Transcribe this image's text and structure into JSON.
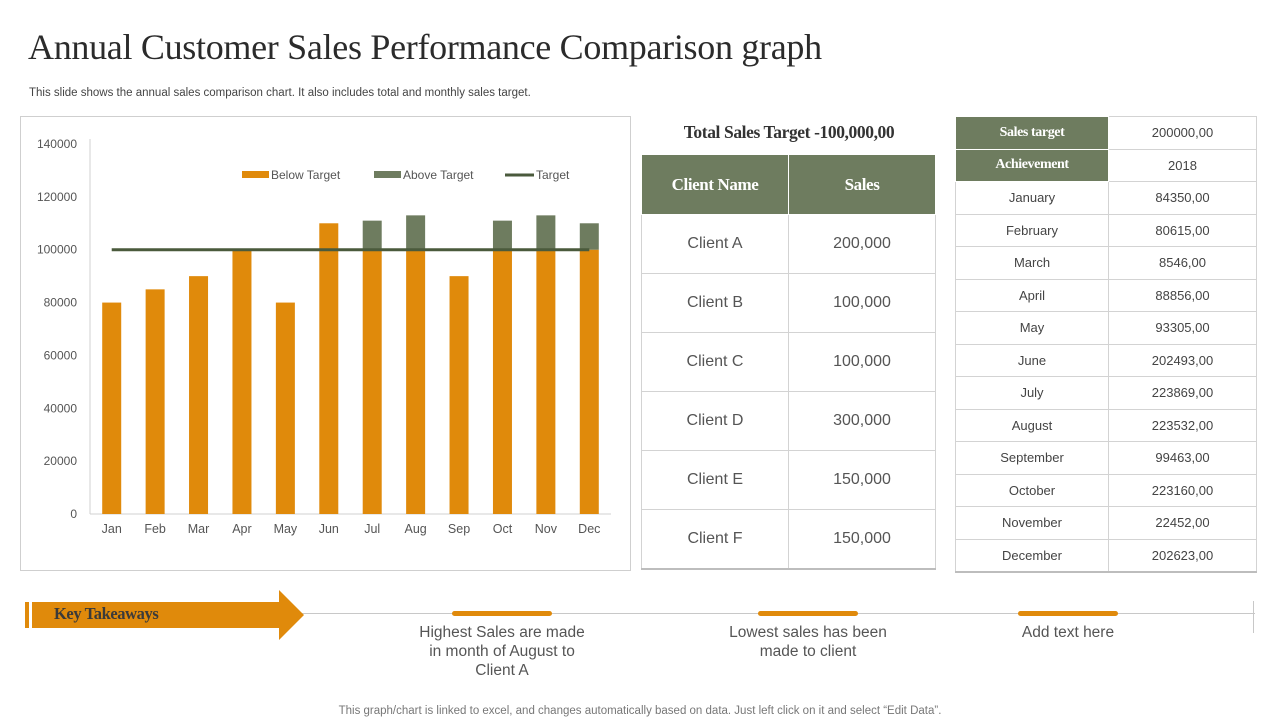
{
  "title": "Annual Customer Sales Performance Comparison graph",
  "subtitle": "This slide shows the annual sales comparison chart. It also includes total and monthly sales target.",
  "colors": {
    "below": "#e08a0b",
    "above": "#6e7c5f",
    "target": "#4a5a3c",
    "header": "#6e7c5f"
  },
  "chart_data": {
    "type": "bar",
    "stacked": true,
    "categories": [
      "Jan",
      "Feb",
      "Mar",
      "Apr",
      "May",
      "Jun",
      "Jul",
      "Aug",
      "Sep",
      "Oct",
      "Nov",
      "Dec"
    ],
    "series": [
      {
        "name": "Below Target",
        "values": [
          80000,
          85000,
          90000,
          100000,
          80000,
          110000,
          100000,
          100000,
          90000,
          100000,
          100000,
          100000
        ]
      },
      {
        "name": "Above Target",
        "values": [
          0,
          0,
          0,
          0,
          0,
          0,
          11000,
          13000,
          0,
          11000,
          13000,
          10000
        ]
      },
      {
        "name": "Target",
        "type": "line",
        "values": [
          100000,
          100000,
          100000,
          100000,
          100000,
          100000,
          100000,
          100000,
          100000,
          100000,
          100000,
          100000
        ]
      }
    ],
    "ylim": [
      0,
      140000
    ],
    "yticks": [
      0,
      20000,
      40000,
      60000,
      80000,
      100000,
      120000,
      140000
    ],
    "legend": [
      "Below Target",
      "Above Target",
      "Target"
    ],
    "legend_position": "top-right",
    "grid": false,
    "xlabel": "",
    "ylabel": ""
  },
  "clients": {
    "heading": "Total Sales Target -100,000,00",
    "columns": [
      "Client Name",
      "Sales"
    ],
    "rows": [
      [
        "Client A",
        "200,000"
      ],
      [
        "Client B",
        "100,000"
      ],
      [
        "Client C",
        "100,000"
      ],
      [
        "Client D",
        "300,000"
      ],
      [
        "Client E",
        "150,000"
      ],
      [
        "Client F",
        "150,000"
      ]
    ]
  },
  "monthly": {
    "target_label": "Sales target",
    "target_value": "200000,00",
    "achievement_label": "Achievement",
    "achievement_value": "2018",
    "rows": [
      [
        "January",
        "84350,00"
      ],
      [
        "February",
        "80615,00"
      ],
      [
        "March",
        "8546,00"
      ],
      [
        "April",
        "88856,00"
      ],
      [
        "May",
        "93305,00"
      ],
      [
        "June",
        "202493,00"
      ],
      [
        "July",
        "223869,00"
      ],
      [
        "August",
        "223532,00"
      ],
      [
        "September",
        "99463,00"
      ],
      [
        "October",
        "223160,00"
      ],
      [
        "November",
        "22452,00"
      ],
      [
        "December",
        "202623,00"
      ]
    ]
  },
  "takeaways": {
    "label": "Key Takeaways",
    "items": [
      "Highest Sales are made in month of August to Client A",
      "Lowest sales has been made to client",
      "Add text here"
    ]
  },
  "footer": "This graph/chart is linked to excel, and changes automatically based on data. Just left click on it and select “Edit Data”."
}
